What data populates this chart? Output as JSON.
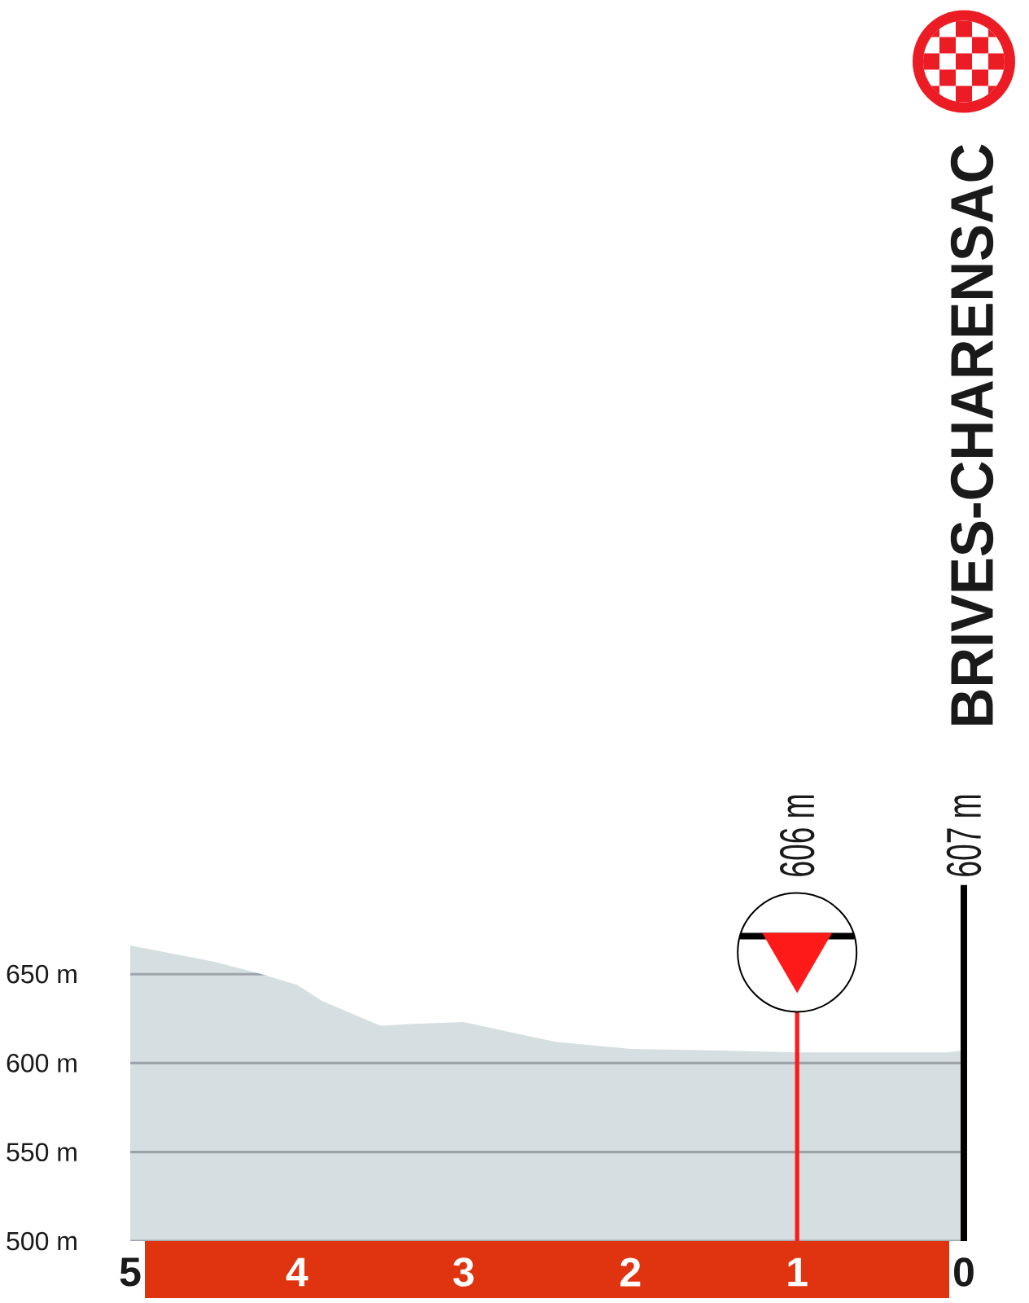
{
  "chart_data": {
    "type": "area",
    "x": [
      5,
      4.5,
      4.25,
      4.0,
      3.85,
      3.5,
      3.3,
      3.0,
      2.65,
      2.45,
      2.0,
      1.45,
      1.0,
      0.5,
      0.1,
      0
    ],
    "values": [
      666,
      657,
      651,
      644,
      635,
      621,
      622,
      623,
      616,
      612,
      608,
      607,
      606,
      606,
      606,
      607
    ],
    "color": "#d5dfe1",
    "xlim": [
      5,
      0
    ],
    "ylim": [
      500,
      700
    ],
    "xticks": [
      5,
      4,
      3,
      2,
      1,
      0
    ],
    "yticks": [
      {
        "value": 500,
        "label": "500 m"
      },
      {
        "value": 550,
        "label": "550 m"
      },
      {
        "value": 600,
        "label": "600 m"
      },
      {
        "value": 650,
        "label": "650 m"
      }
    ],
    "grid": "y",
    "ref_lines": [
      {
        "axis": "x",
        "value": 1,
        "color": "#ff1a1a",
        "label": "606 m"
      },
      {
        "axis": "x",
        "value": 0,
        "color": "#000000",
        "label": "607 m"
      }
    ],
    "annotations": [
      "BRIVES-CHARENSAC"
    ]
  }
}
